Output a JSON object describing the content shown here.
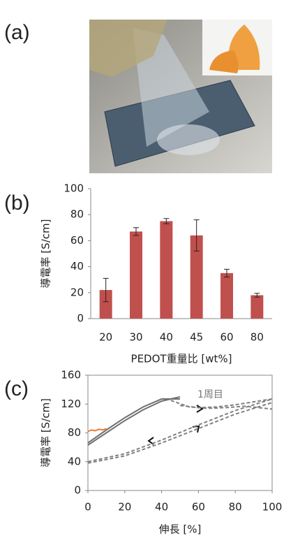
{
  "panel_labels": [
    "(a)",
    "(b)",
    "(c)"
  ],
  "chart_data": [
    {
      "type": "bar",
      "categories": [
        "20",
        "30",
        "40",
        "45",
        "60",
        "80"
      ],
      "values": [
        22,
        67,
        75,
        64,
        35,
        18
      ],
      "errors": [
        9,
        3,
        2,
        12,
        3,
        1.5
      ],
      "color": "#c0504d",
      "ylim": [
        0,
        100
      ],
      "yticks": [
        0,
        20,
        40,
        60,
        80,
        100
      ],
      "x_label": "PEDOT重量比 [wt%]",
      "y_label": "導電率 [S/cm]"
    },
    {
      "type": "line",
      "xlim": [
        0,
        100
      ],
      "xticks": [
        0,
        20,
        40,
        60,
        80,
        100
      ],
      "ylim": [
        0,
        160
      ],
      "yticks": [
        0,
        40,
        80,
        120,
        160
      ],
      "x_label": "伸長 [%]",
      "y_label": "導電率 [S/cm]",
      "annotations": [
        "1周目"
      ],
      "series": [
        {
          "color": "#707070",
          "dash": false,
          "x": [
            0,
            10,
            20,
            30,
            40,
            50
          ],
          "values": [
            63,
            80,
            97,
            112,
            124,
            130
          ]
        },
        {
          "color": "#707070",
          "dash": false,
          "x": [
            0,
            10,
            20,
            30,
            40,
            50
          ],
          "values": [
            66,
            84,
            101,
            116,
            127,
            127
          ]
        },
        {
          "color": "#808080",
          "dash": true,
          "x": [
            45,
            55,
            65,
            75,
            85,
            100
          ],
          "values": [
            125,
            116,
            114,
            115,
            117,
            113
          ]
        },
        {
          "color": "#808080",
          "dash": true,
          "x": [
            50,
            60,
            70,
            80,
            90,
            100
          ],
          "values": [
            118,
            115,
            116,
            119,
            123,
            127
          ]
        },
        {
          "color": "#808080",
          "dash": true,
          "x": [
            0,
            20,
            40,
            60,
            80,
            100
          ],
          "values": [
            38,
            48,
            66,
            86,
            106,
            122
          ]
        },
        {
          "color": "#808080",
          "dash": true,
          "x": [
            0,
            20,
            40,
            60,
            80,
            100
          ],
          "values": [
            40,
            51,
            70,
            91,
            111,
            127
          ]
        },
        {
          "color": "#ed7d31",
          "dash": false,
          "x": [
            0,
            2,
            4,
            6,
            8,
            10
          ],
          "values": [
            82,
            84,
            83,
            85,
            84,
            86
          ]
        }
      ]
    }
  ]
}
